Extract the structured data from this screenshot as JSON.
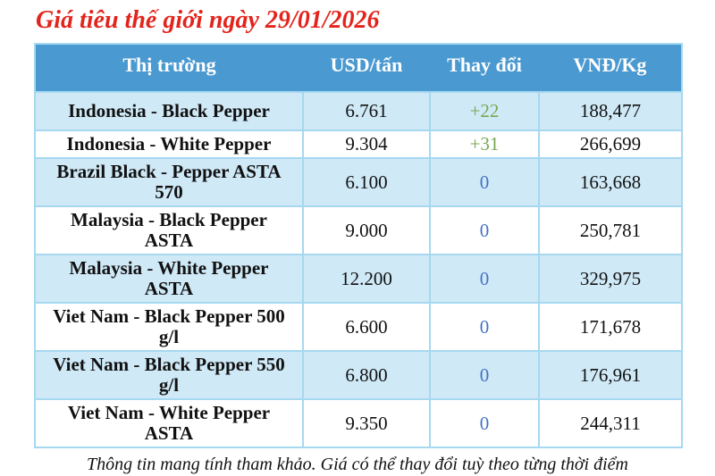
{
  "title": "Giá tiêu thế giới ngày 29/01/2026",
  "footer_note": "Thông tin mang tính tham khảo. Giá có thể thay đổi tuỳ theo từng thời điểm",
  "chart_data": {
    "type": "table",
    "title": "Giá tiêu thế giới ngày 29/01/2026",
    "columns": [
      "Thị trường",
      "USD/tấn",
      "Thay đổi",
      "VNĐ/Kg"
    ],
    "rows": [
      {
        "market": "Indonesia - Black Pepper",
        "usd_per_ton": "6.761",
        "change": "+22",
        "change_color": "green",
        "vnd_per_kg": "188,477"
      },
      {
        "market": "Indonesia - White Pepper",
        "usd_per_ton": "9.304",
        "change": "+31",
        "change_color": "green",
        "vnd_per_kg": "266,699"
      },
      {
        "market": "Brazil Black - Pepper ASTA 570",
        "usd_per_ton": "6.100",
        "change": "0",
        "change_color": "blue",
        "vnd_per_kg": "163,668"
      },
      {
        "market": "Malaysia - Black Pepper ASTA",
        "usd_per_ton": "9.000",
        "change": "0",
        "change_color": "blue",
        "vnd_per_kg": "250,781"
      },
      {
        "market": "Malaysia - White Pepper ASTA",
        "usd_per_ton": "12.200",
        "change": "0",
        "change_color": "blue",
        "vnd_per_kg": "329,975"
      },
      {
        "market": "Viet Nam - Black Pepper 500 g/l",
        "usd_per_ton": "6.600",
        "change": "0",
        "change_color": "blue",
        "vnd_per_kg": "171,678"
      },
      {
        "market": "Viet Nam - Black Pepper 550 g/l",
        "usd_per_ton": "6.800",
        "change": "0",
        "change_color": "blue",
        "vnd_per_kg": "176,961"
      },
      {
        "market": "Viet Nam - White Pepper ASTA",
        "usd_per_ton": "9.350",
        "change": "0",
        "change_color": "blue",
        "vnd_per_kg": "244,311"
      }
    ]
  },
  "colors": {
    "header_bg": "#4a99d0",
    "row_shaded_bg": "#cfe9f7",
    "border": "#a6d8f0",
    "title_red": "#e3241c",
    "change_positive": "#77a84f",
    "change_zero": "#4472c4"
  }
}
